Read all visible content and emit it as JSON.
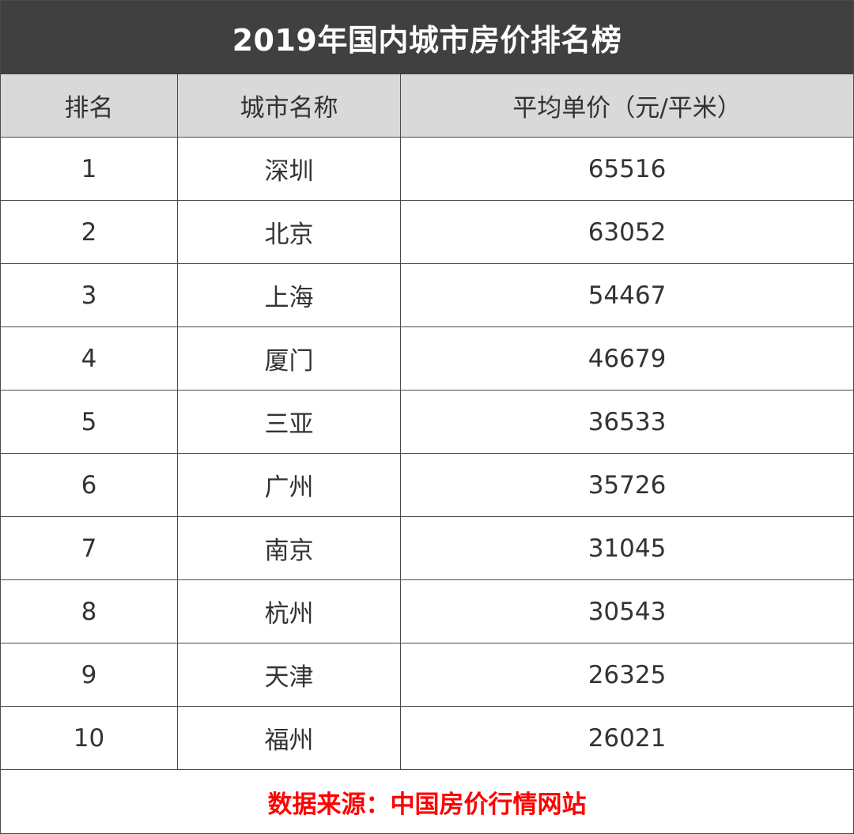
{
  "title": "2019年国内城市房价排名榜",
  "colors": {
    "title_bg": "#404040",
    "header_bg": "#d9d9d9",
    "footer_text": "#ff0000"
  },
  "table": {
    "headers": [
      "排名",
      "城市名称",
      "平均单价（元/平米）"
    ],
    "rows": [
      {
        "rank": "1",
        "city": "深圳",
        "price": "65516"
      },
      {
        "rank": "2",
        "city": "北京",
        "price": "63052"
      },
      {
        "rank": "3",
        "city": "上海",
        "price": "54467"
      },
      {
        "rank": "4",
        "city": "厦门",
        "price": "46679"
      },
      {
        "rank": "5",
        "city": "三亚",
        "price": "36533"
      },
      {
        "rank": "6",
        "city": "广州",
        "price": "35726"
      },
      {
        "rank": "7",
        "city": "南京",
        "price": "31045"
      },
      {
        "rank": "8",
        "city": "杭州",
        "price": "30543"
      },
      {
        "rank": "9",
        "city": "天津",
        "price": "26325"
      },
      {
        "rank": "10",
        "city": "福州",
        "price": "26021"
      }
    ]
  },
  "footer": "数据来源：中国房价行情网站"
}
